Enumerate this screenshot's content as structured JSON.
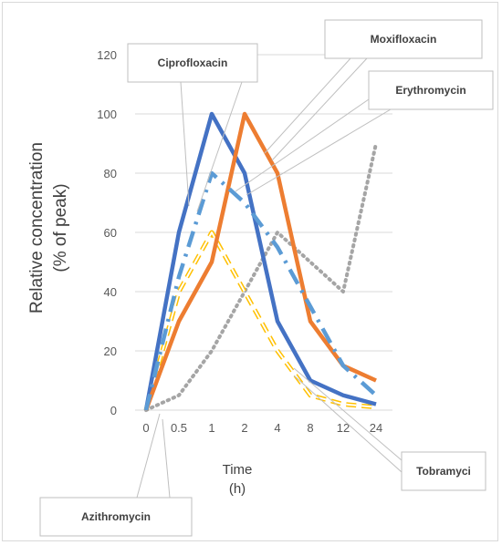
{
  "chart_data": {
    "type": "line",
    "xlabel": "Time\n(h)",
    "ylabel": "Relative concentration\n(% of peak)",
    "categories": [
      "0",
      "0.5",
      "1",
      "2",
      "4",
      "8",
      "12",
      "24"
    ],
    "ylim": [
      0,
      120
    ],
    "yticks": [
      0,
      20,
      40,
      60,
      80,
      100,
      120
    ],
    "grid": true,
    "series": [
      {
        "name": "Ciprofloxacin",
        "values": [
          0,
          60,
          100,
          80,
          30,
          10,
          5,
          2
        ],
        "color": "#4472c4",
        "style": "solid"
      },
      {
        "name": "Moxifloxacin",
        "values": [
          0,
          30,
          50,
          100,
          80,
          30,
          15,
          10
        ],
        "color": "#ed7d31",
        "style": "solid"
      },
      {
        "name": "Erythromycin",
        "values": [
          0,
          45,
          80,
          70,
          55,
          35,
          15,
          5
        ],
        "color": "#5b9bd5",
        "style": "dashdot"
      },
      {
        "name": "Azithromycin",
        "values": [
          0,
          5,
          20,
          40,
          60,
          50,
          40,
          90
        ],
        "color": "#a5a5a5",
        "style": "dotted"
      },
      {
        "name": "Tobramyci",
        "values": [
          0,
          40,
          60,
          40,
          20,
          5,
          2,
          1
        ],
        "color": "#ffc000",
        "style": "double-dash"
      }
    ]
  }
}
